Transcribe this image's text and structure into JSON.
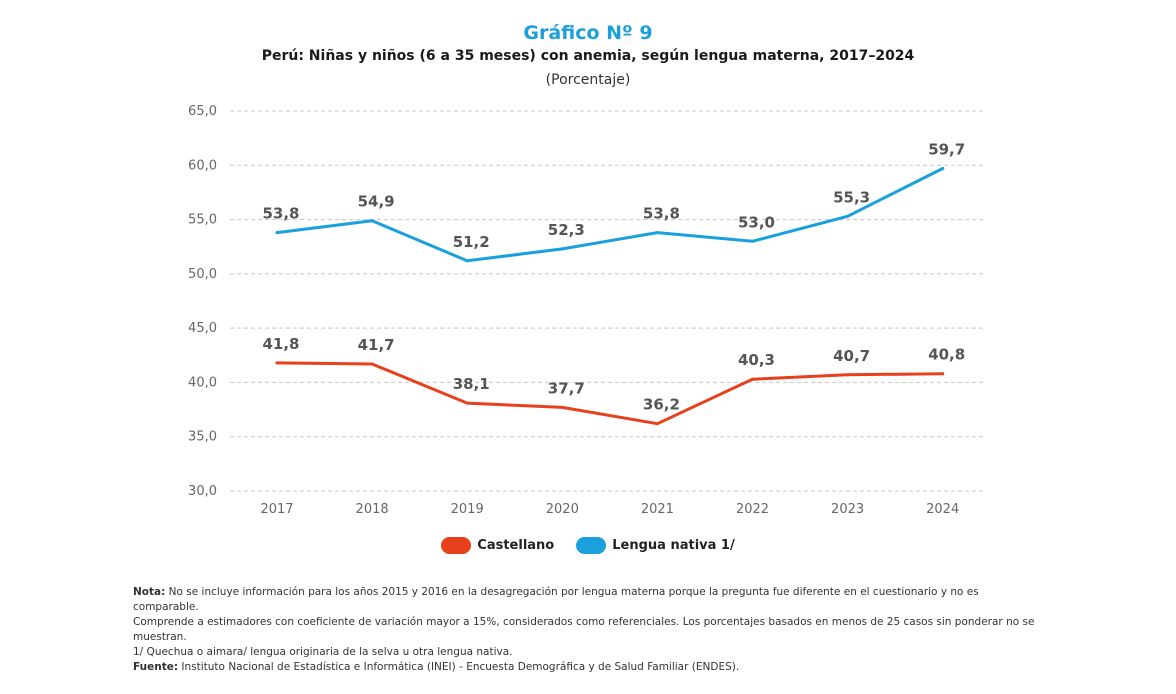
{
  "header": {
    "title": "Gráfico Nº 9",
    "subtitle": "Perú: Niñas y niños (6 a 35 meses) con anemia, según lengua materna, 2017–2024",
    "unit": "(Porcentaje)"
  },
  "chart_data": {
    "type": "line",
    "title": "Gráfico Nº 9",
    "subtitle": "Perú: Niñas y niños (6 a 35 meses) con anemia, según lengua materna, 2017–2024",
    "ylabel": "(Porcentaje)",
    "xlabel": "",
    "x": [
      "2017",
      "2018",
      "2019",
      "2020",
      "2021",
      "2022",
      "2023",
      "2024"
    ],
    "ylim": [
      30,
      65
    ],
    "yticks": [
      "30,0",
      "35,0",
      "40,0",
      "45,0",
      "50,0",
      "55,0",
      "60,0",
      "65,0"
    ],
    "ytick_values": [
      30,
      35,
      40,
      45,
      50,
      55,
      60,
      65
    ],
    "grid": true,
    "legend_position": "bottom-center",
    "series": [
      {
        "name": "Castellano",
        "color": "#e8401c",
        "values": [
          41.8,
          41.7,
          38.1,
          37.7,
          36.2,
          40.3,
          40.7,
          40.8
        ],
        "labels": [
          "41,8",
          "41,7",
          "38,1",
          "37,7",
          "36,2",
          "40,3",
          "40,7",
          "40,8"
        ]
      },
      {
        "name": "Lengua nativa 1/",
        "color": "#1aa0dc",
        "values": [
          53.8,
          54.9,
          51.2,
          52.3,
          53.8,
          53.0,
          55.3,
          59.7
        ],
        "labels": [
          "53,8",
          "54,9",
          "51,2",
          "52,3",
          "53,8",
          "53,0",
          "55,3",
          "59,7"
        ]
      }
    ]
  },
  "legend": {
    "castellano": "Castellano",
    "nativa": "Lengua nativa 1/",
    "castellano_color": "#e8401c",
    "nativa_color": "#1aa0dc"
  },
  "notes": {
    "nota_label": "Nota:",
    "nota_text": "No se incluye información para los años 2015 y 2016 en la desagregación por lengua materna porque la pregunta fue diferente en el cuestionario y no es comparable.",
    "line2": "Comprende a estimadores con coeficiente de variación mayor a 15%, considerados como referenciales. Los porcentajes basados en menos de 25 casos sin ponderar no se muestran.",
    "line3": "1/ Quechua o aimara/ lengua originaria de la selva u otra lengua nativa.",
    "fuente_label": "Fuente:",
    "fuente_text": "Instituto Nacional de Estadística e Informática (INEI) - Encuesta Demográfica y de Salud Familiar (ENDES)."
  }
}
